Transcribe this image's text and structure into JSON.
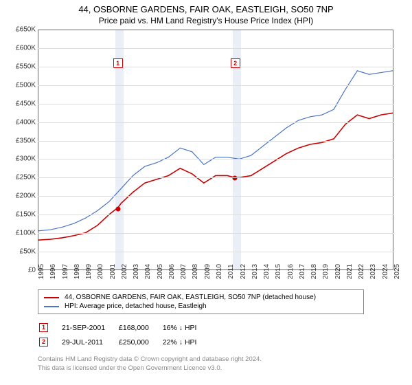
{
  "title": "44, OSBORNE GARDENS, FAIR OAK, EASTLEIGH, SO50 7NP",
  "subtitle": "Price paid vs. HM Land Registry's House Price Index (HPI)",
  "chart": {
    "type": "line",
    "ylim": [
      0,
      650000
    ],
    "ytick_step": 50000,
    "ytick_labels": [
      "£0",
      "£50K",
      "£100K",
      "£150K",
      "£200K",
      "£250K",
      "£300K",
      "£350K",
      "£400K",
      "£450K",
      "£500K",
      "£550K",
      "£600K",
      "£650K"
    ],
    "xlim": [
      1995,
      2025
    ],
    "xticks": [
      1995,
      1996,
      1997,
      1998,
      1999,
      2000,
      2001,
      2002,
      2003,
      2004,
      2005,
      2006,
      2007,
      2008,
      2009,
      2010,
      2011,
      2012,
      2013,
      2014,
      2015,
      2016,
      2017,
      2018,
      2019,
      2020,
      2021,
      2022,
      2023,
      2024,
      2025
    ],
    "grid_color": "#dddddd",
    "border_color": "#666666",
    "background_color": "#ffffff",
    "band_color": "#eaeef6",
    "bands": [
      {
        "start": 2001.5,
        "end": 2002.2
      },
      {
        "start": 2011.4,
        "end": 2012.1
      }
    ],
    "markers": [
      {
        "n": "1",
        "year": 2001.7,
        "y_box": 560000
      },
      {
        "n": "2",
        "year": 2011.6,
        "y_box": 560000
      }
    ],
    "sale_points": [
      {
        "year": 2001.72,
        "price": 168000
      },
      {
        "year": 2011.58,
        "price": 250000
      }
    ],
    "series": [
      {
        "name": "44, OSBORNE GARDENS, FAIR OAK, EASTLEIGH, SO50 7NP (detached house)",
        "color": "#cc0000",
        "width": 1.6,
        "data": [
          [
            1995,
            80000
          ],
          [
            1996,
            82000
          ],
          [
            1997,
            86000
          ],
          [
            1998,
            92000
          ],
          [
            1999,
            100000
          ],
          [
            2000,
            120000
          ],
          [
            2001,
            150000
          ],
          [
            2001.72,
            168000
          ],
          [
            2002,
            180000
          ],
          [
            2003,
            210000
          ],
          [
            2004,
            235000
          ],
          [
            2005,
            245000
          ],
          [
            2006,
            255000
          ],
          [
            2007,
            275000
          ],
          [
            2008,
            260000
          ],
          [
            2009,
            235000
          ],
          [
            2010,
            255000
          ],
          [
            2011,
            255000
          ],
          [
            2011.58,
            250000
          ],
          [
            2012,
            250000
          ],
          [
            2013,
            255000
          ],
          [
            2014,
            275000
          ],
          [
            2015,
            295000
          ],
          [
            2016,
            315000
          ],
          [
            2017,
            330000
          ],
          [
            2018,
            340000
          ],
          [
            2019,
            345000
          ],
          [
            2020,
            355000
          ],
          [
            2021,
            395000
          ],
          [
            2022,
            420000
          ],
          [
            2023,
            410000
          ],
          [
            2024,
            420000
          ],
          [
            2025,
            425000
          ]
        ]
      },
      {
        "name": "HPI: Average price, detached house, Eastleigh",
        "color": "#4a74c9",
        "width": 1.2,
        "data": [
          [
            1995,
            105000
          ],
          [
            1996,
            108000
          ],
          [
            1997,
            115000
          ],
          [
            1998,
            125000
          ],
          [
            1999,
            140000
          ],
          [
            2000,
            160000
          ],
          [
            2001,
            185000
          ],
          [
            2002,
            220000
          ],
          [
            2003,
            255000
          ],
          [
            2004,
            280000
          ],
          [
            2005,
            290000
          ],
          [
            2006,
            305000
          ],
          [
            2007,
            330000
          ],
          [
            2008,
            320000
          ],
          [
            2009,
            285000
          ],
          [
            2010,
            305000
          ],
          [
            2011,
            305000
          ],
          [
            2012,
            300000
          ],
          [
            2013,
            310000
          ],
          [
            2014,
            335000
          ],
          [
            2015,
            360000
          ],
          [
            2016,
            385000
          ],
          [
            2017,
            405000
          ],
          [
            2018,
            415000
          ],
          [
            2019,
            420000
          ],
          [
            2020,
            435000
          ],
          [
            2021,
            490000
          ],
          [
            2022,
            540000
          ],
          [
            2023,
            530000
          ],
          [
            2024,
            535000
          ],
          [
            2025,
            540000
          ]
        ]
      }
    ]
  },
  "legend": {
    "items": [
      {
        "color": "#cc0000",
        "label": "44, OSBORNE GARDENS, FAIR OAK, EASTLEIGH, SO50 7NP (detached house)"
      },
      {
        "color": "#4a74c9",
        "label": "HPI: Average price, detached house, Eastleigh"
      }
    ]
  },
  "sales": [
    {
      "n": "1",
      "date": "21-SEP-2001",
      "price": "£168,000",
      "vs": "16% ↓ HPI"
    },
    {
      "n": "2",
      "date": "29-JUL-2011",
      "price": "£250,000",
      "vs": "22% ↓ HPI"
    }
  ],
  "footnote": {
    "line1": "Contains HM Land Registry data © Crown copyright and database right 2024.",
    "line2": "This data is licensed under the Open Government Licence v3.0."
  }
}
